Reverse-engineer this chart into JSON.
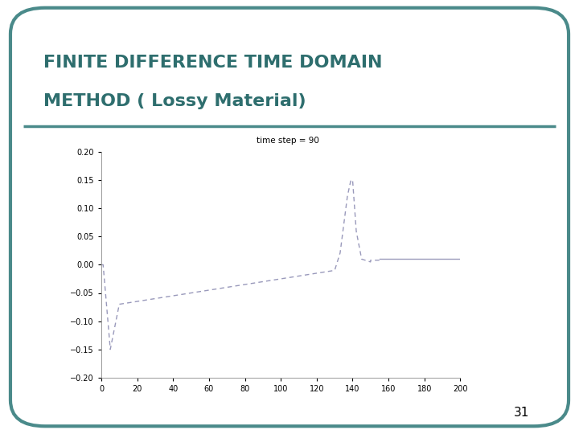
{
  "title_line1": "FINITE DIFFERENCE TIME DOMAIN",
  "title_line2": "METHOD ( Lossy Material)",
  "title_color": "#2e6e6e",
  "title_fontsize": 16,
  "page_number": "31",
  "bg_color": "#ffffff",
  "border_color": "#4a8a8a",
  "legend_text": "time step = 90",
  "xlim": [
    0,
    200
  ],
  "ylim": [
    -0.2,
    0.2
  ],
  "xticks": [
    0,
    20,
    40,
    60,
    80,
    100,
    120,
    140,
    160,
    180,
    200
  ],
  "yticks": [
    -0.2,
    -0.15,
    -0.1,
    -0.05,
    0,
    0.05,
    0.1,
    0.15,
    0.2
  ],
  "line_color": "#9999bb",
  "flat_line_color": "#9999bb"
}
